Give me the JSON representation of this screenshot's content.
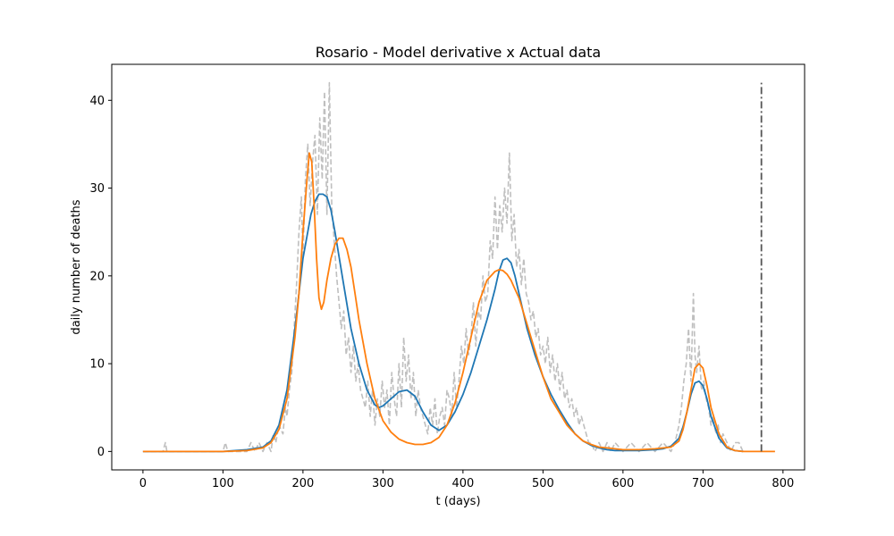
{
  "chart_data": {
    "type": "line",
    "title": "Rosario - Model derivative x Actual data",
    "xlabel": "t (days)",
    "ylabel": "daily number of deaths",
    "xlim": [
      -39,
      827
    ],
    "ylim": [
      -2.1,
      44.1
    ],
    "xticks": [
      0,
      100,
      200,
      300,
      400,
      500,
      600,
      700,
      800
    ],
    "yticks": [
      0,
      10,
      20,
      30,
      40
    ],
    "grid": false,
    "legend": "none",
    "vline": {
      "x": 773,
      "y_range": [
        0,
        42
      ],
      "color": "#555555",
      "style": "dash-dot"
    },
    "series": [
      {
        "style": "dashed",
        "color": "#bfbfbf",
        "x": [
          0,
          25,
          28,
          30,
          35,
          60,
          100,
          103,
          106,
          120,
          130,
          135,
          140,
          145,
          150,
          155,
          160,
          163,
          166,
          170,
          175,
          178,
          180,
          183,
          186,
          189,
          192,
          195,
          198,
          200,
          203,
          206,
          209,
          212,
          215,
          218,
          221,
          224,
          227,
          230,
          233,
          236,
          239,
          242,
          245,
          248,
          251,
          254,
          257,
          260,
          263,
          266,
          269,
          272,
          275,
          278,
          281,
          284,
          287,
          290,
          293,
          296,
          299,
          302,
          305,
          308,
          311,
          314,
          317,
          320,
          323,
          326,
          329,
          332,
          335,
          338,
          341,
          344,
          347,
          350,
          353,
          356,
          359,
          362,
          365,
          368,
          371,
          374,
          377,
          380,
          383,
          386,
          389,
          392,
          395,
          398,
          401,
          404,
          407,
          410,
          413,
          416,
          419,
          422,
          425,
          428,
          431,
          434,
          437,
          440,
          443,
          446,
          449,
          452,
          455,
          458,
          461,
          464,
          467,
          470,
          473,
          476,
          479,
          482,
          485,
          488,
          491,
          494,
          497,
          500,
          503,
          506,
          509,
          512,
          515,
          518,
          521,
          524,
          527,
          530,
          533,
          536,
          539,
          542,
          545,
          548,
          551,
          554,
          557,
          560,
          565,
          570,
          575,
          580,
          585,
          590,
          600,
          610,
          620,
          630,
          640,
          650,
          660,
          665,
          670,
          673,
          676,
          679,
          682,
          685,
          688,
          690,
          692,
          695,
          698,
          701,
          704,
          707,
          710,
          713,
          716,
          719,
          722,
          725,
          730,
          735,
          740,
          745,
          750
        ],
        "y": [
          0,
          0,
          1,
          0,
          0,
          0,
          0,
          1,
          0,
          0,
          0,
          1,
          0,
          1,
          0,
          1,
          0,
          2,
          1,
          3,
          2,
          5,
          4,
          7,
          9,
          14,
          19,
          25,
          29,
          22,
          31,
          35,
          28,
          33,
          36,
          27,
          38,
          31,
          41,
          27,
          42,
          28,
          24,
          20,
          17,
          14,
          16,
          11,
          13,
          9,
          12,
          8,
          10,
          7,
          6,
          5,
          8,
          4,
          7,
          3,
          6,
          4,
          8,
          5,
          7,
          3,
          9,
          6,
          4,
          10,
          5,
          13,
          8,
          11,
          6,
          9,
          4,
          7,
          5,
          4,
          3,
          2,
          5,
          3,
          6,
          2,
          4,
          5,
          3,
          7,
          6,
          4,
          9,
          5,
          8,
          12,
          10,
          14,
          11,
          13,
          17,
          12,
          16,
          15,
          20,
          17,
          18,
          24,
          22,
          29,
          23,
          28,
          25,
          30,
          26,
          34,
          24,
          27,
          21,
          23,
          19,
          22,
          18,
          17,
          15,
          16,
          13,
          14,
          11,
          12,
          10,
          13,
          9,
          11,
          8,
          10,
          7,
          9,
          6,
          7,
          5,
          6,
          4,
          5,
          3,
          4,
          3,
          2,
          1,
          1,
          0,
          1,
          0,
          1,
          0,
          1,
          0,
          1,
          0,
          1,
          0,
          1,
          0,
          1,
          3,
          5,
          8,
          10,
          14,
          8,
          18,
          11,
          9,
          12,
          7,
          8,
          6,
          5,
          3,
          4,
          2,
          3,
          1,
          2,
          1,
          0,
          1,
          1,
          0
        ]
      },
      {
        "style": "solid",
        "color": "#1f77b4",
        "x": [
          0,
          50,
          100,
          130,
          150,
          160,
          170,
          180,
          190,
          200,
          210,
          215,
          220,
          225,
          230,
          235,
          240,
          250,
          260,
          270,
          280,
          290,
          295,
          300,
          310,
          320,
          330,
          340,
          350,
          360,
          370,
          380,
          390,
          400,
          410,
          420,
          430,
          440,
          445,
          450,
          455,
          460,
          465,
          470,
          480,
          490,
          500,
          510,
          520,
          530,
          540,
          550,
          560,
          570,
          580,
          590,
          600,
          620,
          640,
          650,
          660,
          670,
          675,
          680,
          685,
          690,
          695,
          700,
          705,
          710,
          720,
          730,
          740,
          750
        ],
        "y": [
          0,
          0,
          0,
          0.2,
          0.5,
          1.2,
          3,
          7,
          14,
          22,
          27,
          28.5,
          29.3,
          29.3,
          29,
          27.5,
          25,
          19.5,
          14,
          10,
          7,
          5.3,
          5,
          5.2,
          6,
          6.8,
          7,
          6.3,
          4.5,
          3,
          2.4,
          3,
          4.5,
          6.5,
          9,
          12,
          15,
          18.5,
          20.5,
          21.8,
          22,
          21.5,
          20,
          18,
          14,
          11,
          8.5,
          6.5,
          4.8,
          3.3,
          2,
          1.2,
          0.7,
          0.4,
          0.2,
          0.1,
          0.1,
          0.1,
          0.2,
          0.3,
          0.6,
          1.5,
          2.8,
          4.5,
          6.5,
          7.8,
          8,
          7.5,
          6,
          4,
          1.5,
          0.4,
          0.1,
          0
        ]
      },
      {
        "style": "solid",
        "color": "#ff7f0e",
        "x": [
          0,
          50,
          100,
          130,
          150,
          160,
          170,
          180,
          190,
          195,
          200,
          205,
          208,
          211,
          214,
          217,
          220,
          223,
          226,
          230,
          235,
          240,
          245,
          250,
          255,
          260,
          265,
          270,
          280,
          290,
          300,
          310,
          320,
          330,
          340,
          350,
          360,
          370,
          380,
          390,
          400,
          410,
          420,
          430,
          440,
          445,
          450,
          455,
          460,
          465,
          470,
          480,
          490,
          500,
          510,
          520,
          530,
          540,
          550,
          560,
          570,
          580,
          590,
          600,
          620,
          640,
          660,
          670,
          675,
          680,
          685,
          690,
          695,
          700,
          705,
          710,
          720,
          730,
          740,
          750,
          770,
          790
        ],
        "y": [
          0,
          0,
          0,
          0.1,
          0.4,
          1,
          2.5,
          6,
          13,
          18,
          25,
          31,
          34,
          33,
          28,
          22,
          17.5,
          16.2,
          17,
          19.5,
          22,
          23.6,
          24.3,
          24.3,
          23,
          21,
          18,
          15,
          10,
          6,
          3.5,
          2.2,
          1.4,
          1,
          0.8,
          0.8,
          1,
          1.6,
          3,
          5.5,
          9,
          13,
          17,
          19.5,
          20.5,
          20.7,
          20.6,
          20.2,
          19.5,
          18.5,
          17.5,
          14.5,
          11.5,
          8.5,
          6,
          4.5,
          3,
          2,
          1.2,
          0.8,
          0.5,
          0.4,
          0.3,
          0.2,
          0.2,
          0.3,
          0.5,
          1.2,
          2.5,
          4.5,
          7,
          9.5,
          10,
          9.5,
          7.5,
          5,
          2,
          0.5,
          0.1,
          0,
          0,
          0
        ]
      }
    ]
  }
}
